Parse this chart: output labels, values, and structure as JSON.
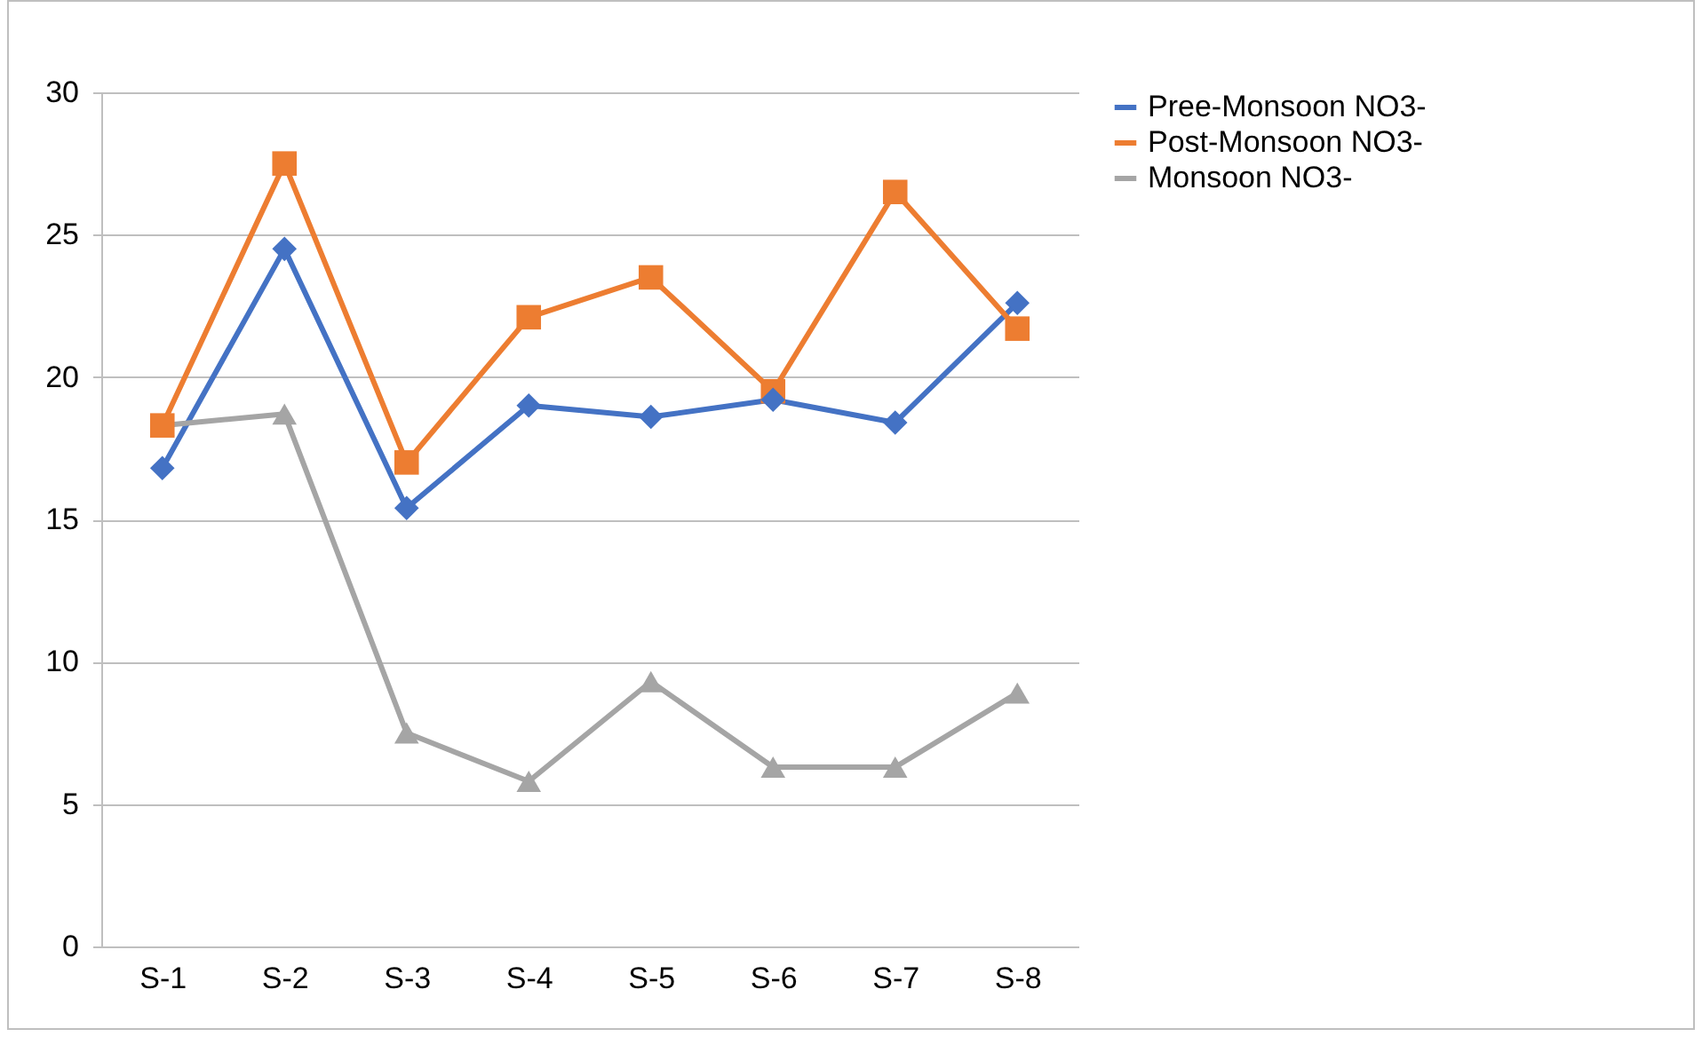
{
  "chart_data": {
    "type": "line",
    "categories": [
      "S-1",
      "S-2",
      "S-3",
      "S-4",
      "S-5",
      "S-6",
      "S-7",
      "S-8"
    ],
    "series": [
      {
        "name": "Pree-Monsoon NO3-",
        "color": "#4472c4",
        "marker": "diamond",
        "values": [
          16.8,
          24.5,
          15.4,
          19.0,
          18.6,
          19.2,
          18.4,
          22.6
        ]
      },
      {
        "name": "Post-Monsoon NO3-",
        "color": "#ed7d31",
        "marker": "square",
        "values": [
          18.3,
          27.5,
          17.0,
          22.1,
          23.5,
          19.5,
          26.5,
          21.7
        ]
      },
      {
        "name": "Monsoon NO3-",
        "color": "#a5a5a5",
        "marker": "triangle",
        "values": [
          18.3,
          18.7,
          7.5,
          5.8,
          9.3,
          6.3,
          6.3,
          8.9
        ]
      }
    ],
    "ylim": [
      0,
      30
    ],
    "yticks": [
      0,
      5,
      10,
      15,
      20,
      25,
      30
    ],
    "grid": "y",
    "legend": "right",
    "line_style": "solid"
  }
}
